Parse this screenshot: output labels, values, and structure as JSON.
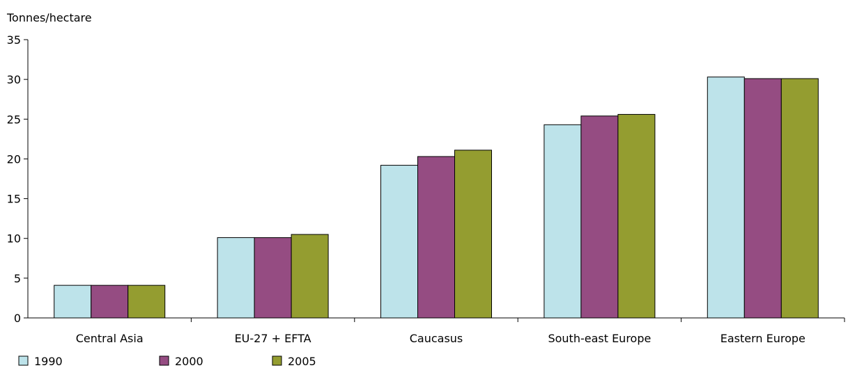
{
  "chart_data": {
    "type": "bar",
    "ylabel": "Tonnes/hectare",
    "xlabel": "",
    "ylim": [
      0,
      35
    ],
    "yticks": [
      0,
      5,
      10,
      15,
      20,
      25,
      30,
      35
    ],
    "grid": false,
    "legend_position": "bottom-left",
    "categories": [
      "Central Asia",
      "EU-27 + EFTA",
      "Caucasus",
      "South-east Europe",
      "Eastern Europe"
    ],
    "series": [
      {
        "name": "1990",
        "color": "#bde3ea",
        "values": [
          4.1,
          10.1,
          19.2,
          24.3,
          30.3
        ]
      },
      {
        "name": "2000",
        "color": "#954c82",
        "values": [
          4.1,
          10.1,
          20.3,
          25.4,
          30.1
        ]
      },
      {
        "name": "2005",
        "color": "#949d30",
        "values": [
          4.1,
          10.5,
          21.1,
          25.6,
          30.1
        ]
      }
    ]
  }
}
